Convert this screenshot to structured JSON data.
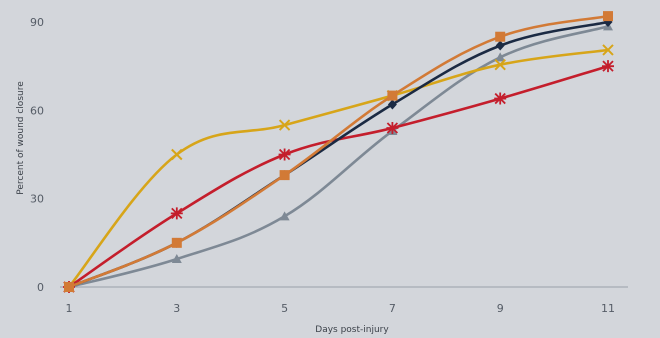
{
  "chart_data": {
    "type": "line",
    "title": "",
    "xlabel": "Days post-injury",
    "ylabel": "Percent of wound closure",
    "x": [
      1,
      3,
      5,
      7,
      9,
      11
    ],
    "xlim": [
      1,
      11
    ],
    "ylim": [
      0,
      90
    ],
    "yticks": [
      0,
      30,
      60,
      90
    ],
    "grid": false,
    "legend": "none",
    "series": [
      {
        "color": "#7e8995",
        "marker": "triangle",
        "values": [
          0,
          9.5,
          24,
          53,
          78,
          88.5
        ]
      },
      {
        "color": "#d7a519",
        "marker": "x",
        "values": [
          0,
          45,
          55,
          65,
          75.5,
          80.5
        ]
      },
      {
        "color": "#c41e2c",
        "marker": "asterisk",
        "values": [
          0,
          25,
          45,
          54,
          64,
          75
        ]
      },
      {
        "color": "#1b2a43",
        "marker": "diamond",
        "values": [
          0,
          15,
          38,
          62,
          82,
          90
        ]
      },
      {
        "color": "#d27a36",
        "marker": "square",
        "values": [
          0,
          15,
          38,
          65,
          85,
          92
        ]
      }
    ]
  }
}
